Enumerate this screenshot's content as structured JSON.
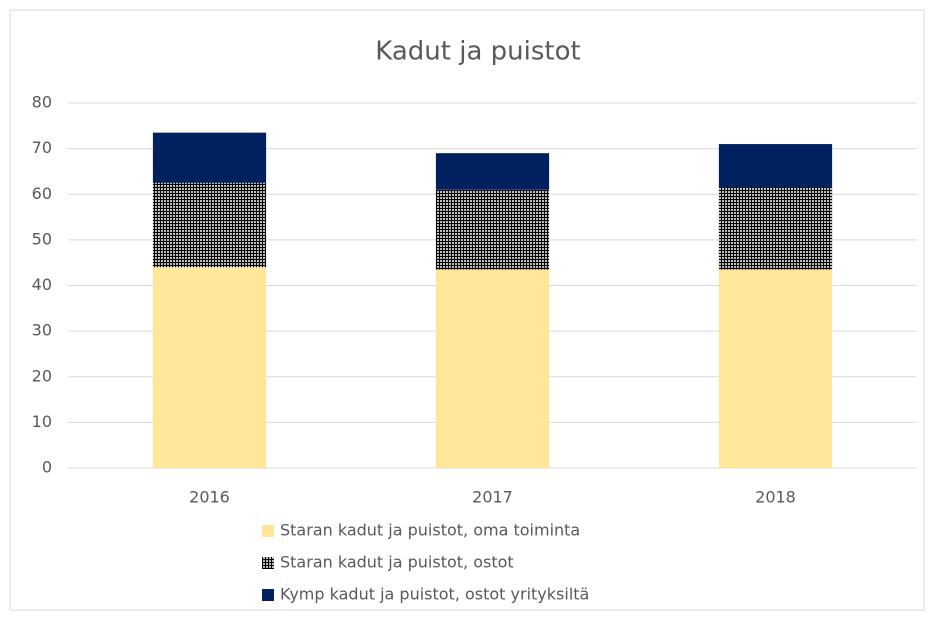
{
  "chart_data": {
    "type": "stacked_bar",
    "title": "Kadut ja puistot",
    "categories": [
      "2016",
      "2017",
      "2018"
    ],
    "series": [
      {
        "name": "Staran kadut ja puistot, oma toiminta",
        "color": "#ffe699",
        "values": [
          44,
          43.5,
          43.5
        ]
      },
      {
        "name": "Staran kadut ja puistot, ostot",
        "color": "#000000",
        "hatch": "cross",
        "values": [
          18.5,
          17.5,
          18
        ]
      },
      {
        "name": "Kymp kadut ja puistot, ostot yrityksiltä",
        "color": "#002060",
        "values": [
          11,
          8,
          9.5
        ]
      }
    ],
    "ylim": [
      0,
      80
    ],
    "yticks": [
      0,
      10,
      20,
      30,
      40,
      50,
      60,
      70,
      80
    ],
    "grid": true,
    "legend": "bottom"
  }
}
